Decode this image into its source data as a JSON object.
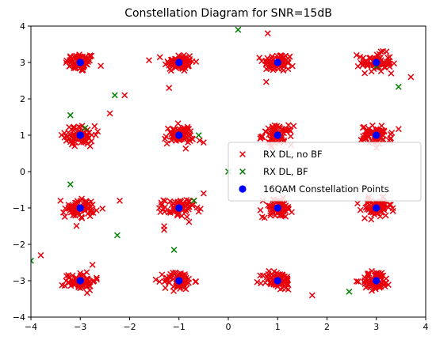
{
  "chart_data": {
    "type": "scatter",
    "title": "Constellation Diagram for SNR=15dB",
    "xlabel": "",
    "ylabel": "",
    "xlim": [
      -4,
      4
    ],
    "ylim": [
      -4,
      4
    ],
    "xticks": [
      -4,
      -3,
      -2,
      -1,
      0,
      1,
      2,
      3,
      4
    ],
    "yticks": [
      -4,
      -3,
      -2,
      -1,
      0,
      1,
      2,
      3,
      4
    ],
    "grid": false,
    "legend_position": "center-right",
    "constellation": {
      "x": [
        -3,
        -1,
        1,
        3,
        -3,
        -1,
        1,
        3,
        -3,
        -1,
        1,
        3,
        -3,
        -1,
        1,
        3
      ],
      "y": [
        3,
        3,
        3,
        3,
        1,
        1,
        1,
        1,
        -1,
        -1,
        -1,
        -1,
        -3,
        -3,
        -3,
        -3
      ]
    },
    "series": [
      {
        "name": "RX DL, no BF",
        "marker": "x",
        "color": "#e8000b",
        "cluster_spread": 0.15,
        "cluster_points_per_symbol": 70,
        "outliers": [
          [
            -3.8,
            -2.3
          ],
          [
            -2.1,
            2.1
          ],
          [
            -2.4,
            1.6
          ],
          [
            -2.2,
            -0.8
          ],
          [
            -1.3,
            -1.6
          ],
          [
            -1.3,
            -1.5
          ],
          [
            -1.2,
            2.3
          ],
          [
            -0.6,
            -1.1
          ],
          [
            -0.5,
            -0.6
          ],
          [
            -0.5,
            0.8
          ],
          [
            0.8,
            3.8
          ],
          [
            1.7,
            -3.4
          ],
          [
            3.7,
            2.6
          ],
          [
            0.7,
            -0.8
          ],
          [
            -2.8,
            0.7
          ],
          [
            -3.4,
            -0.8
          ],
          [
            1.3,
            2.9
          ],
          [
            -1.4,
            -1.0
          ],
          [
            2.6,
            3.2
          ],
          [
            3.3,
            2.7
          ]
        ]
      },
      {
        "name": "RX DL, BF",
        "marker": "x",
        "color": "#008000",
        "cluster_spread": 0.0,
        "cluster_points_per_symbol": 0,
        "outliers": [
          [
            0.2,
            3.9
          ],
          [
            -2.3,
            2.1
          ],
          [
            -3.2,
            1.55
          ],
          [
            -2.9,
            1.2
          ],
          [
            -0.6,
            1.0
          ],
          [
            -3.2,
            -0.35
          ],
          [
            -2.25,
            -1.75
          ],
          [
            -1.1,
            -2.15
          ],
          [
            -0.7,
            -0.8
          ],
          [
            -4.0,
            -2.45
          ],
          [
            3.45,
            2.33
          ],
          [
            2.45,
            -3.3
          ],
          [
            0.0,
            0.0
          ],
          [
            3.0,
            2.9
          ]
        ]
      },
      {
        "name": "16QAM Constellation Points",
        "marker": "o",
        "color": "#0000ff"
      }
    ]
  }
}
